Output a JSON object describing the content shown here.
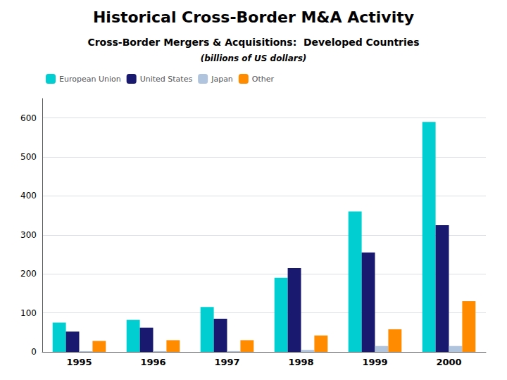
{
  "chart_data": {
    "type": "bar",
    "title": "Historical Cross-Border M&A Activity",
    "subtitle": [
      "Cross-Border Mergers & Acquisitions:  Developed Countries",
      "(billions of US dollars)"
    ],
    "categories": [
      "1995",
      "1996",
      "1997",
      "1998",
      "1999",
      "2000"
    ],
    "series": [
      {
        "name": "European Union",
        "color": "#00CED1",
        "values": [
          75,
          82,
          115,
          190,
          360,
          590
        ]
      },
      {
        "name": "United States",
        "color": "#191970",
        "values": [
          52,
          62,
          85,
          215,
          255,
          325
        ]
      },
      {
        "name": "Japan",
        "color": "#B0C4DE",
        "values": [
          2,
          2,
          2,
          5,
          15,
          15
        ]
      },
      {
        "name": "Other",
        "color": "#FF8C00",
        "values": [
          28,
          30,
          30,
          42,
          58,
          130
        ]
      }
    ],
    "ylim": [
      0,
      650
    ],
    "yticks": [
      0,
      100,
      200,
      300,
      400,
      500,
      600
    ],
    "grid": true,
    "legend": "upper left"
  }
}
